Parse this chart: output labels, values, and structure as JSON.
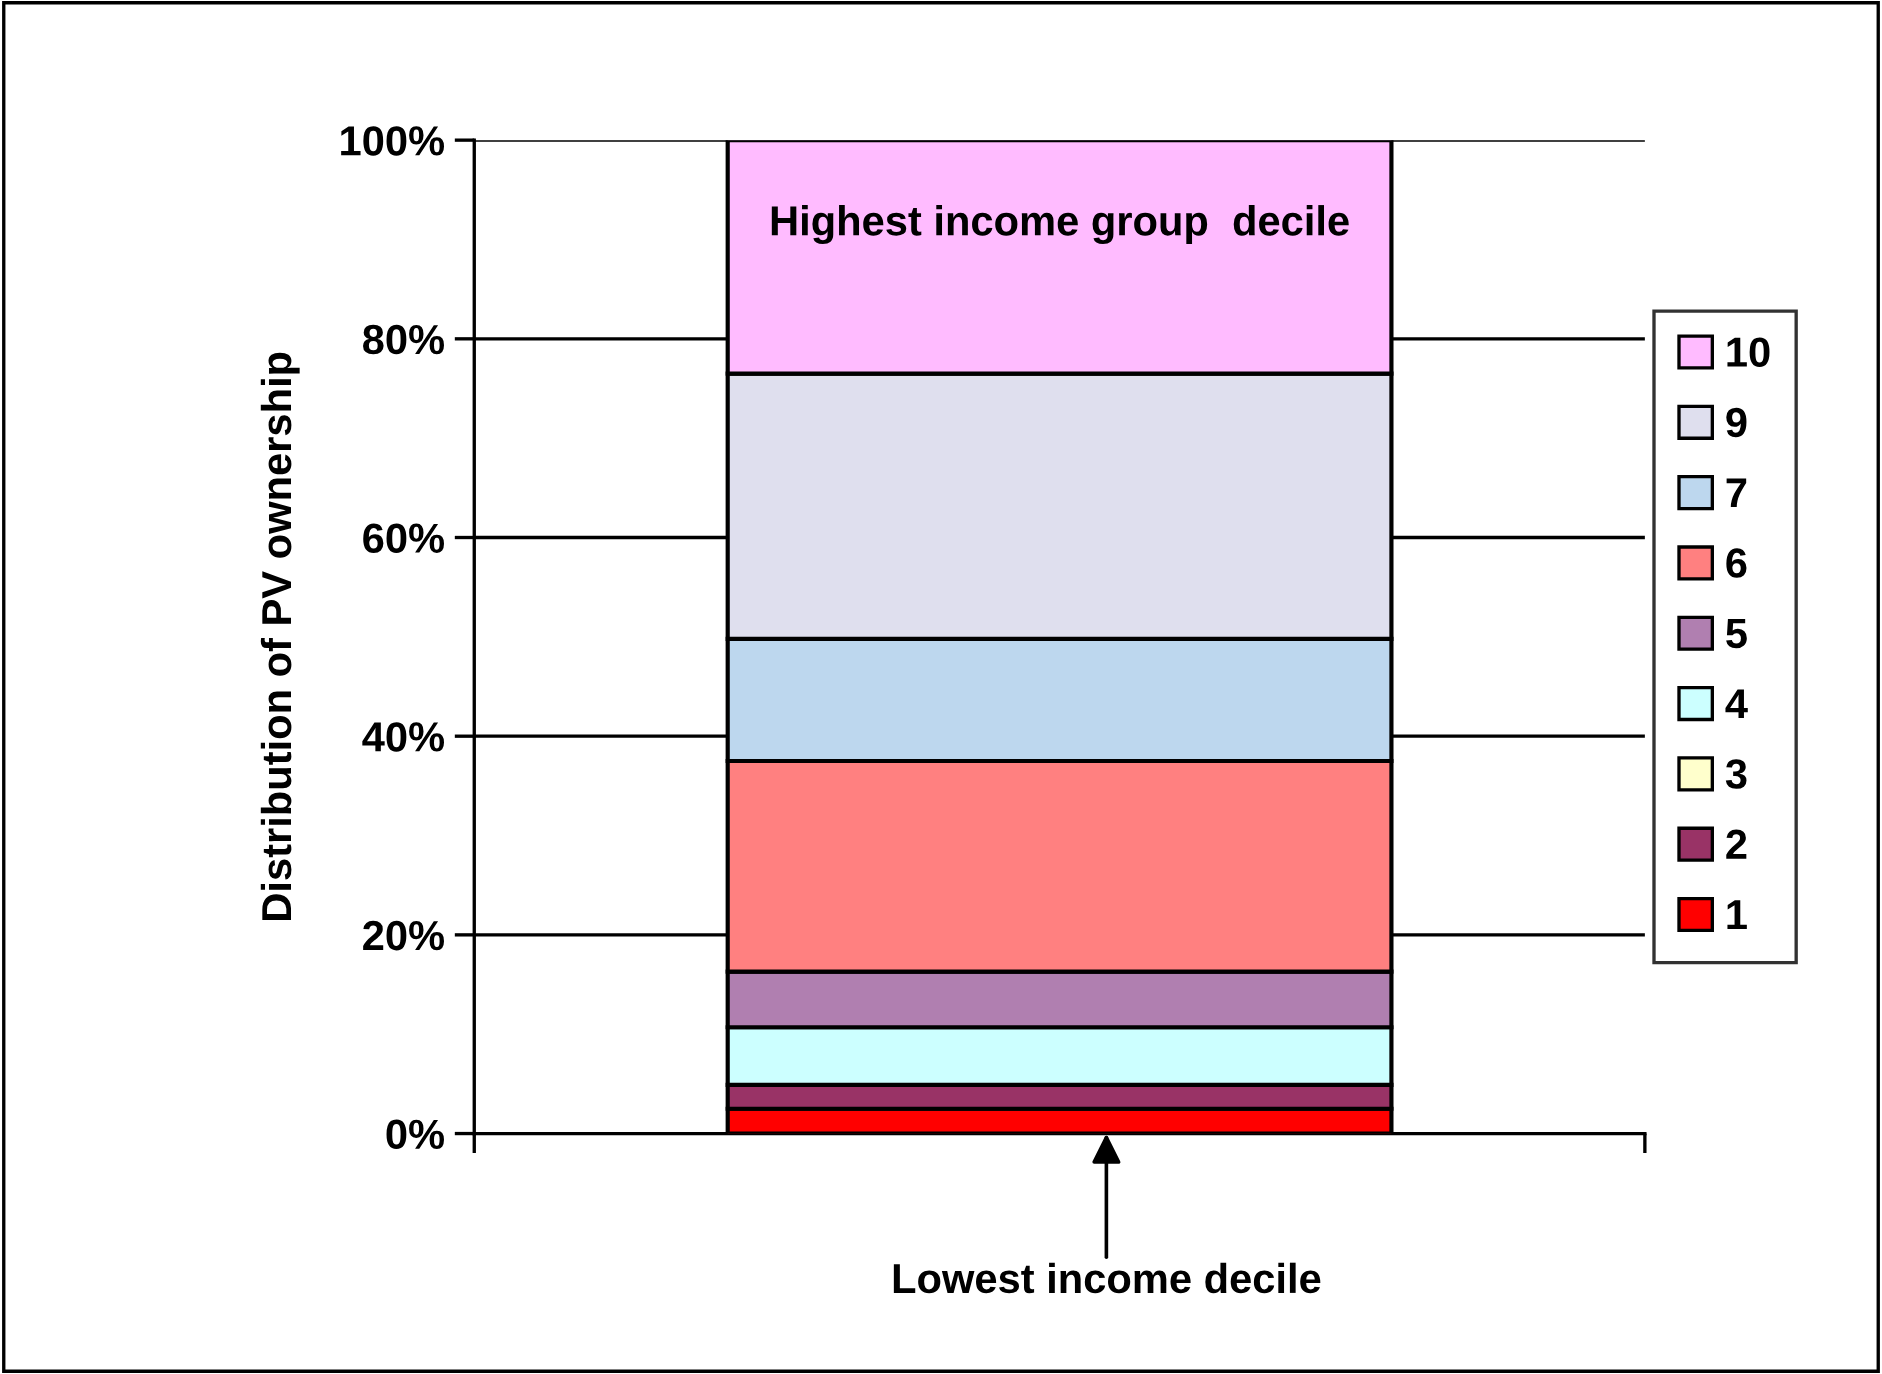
{
  "chart_data": {
    "type": "bar",
    "stacked": true,
    "ylabel": "Distribution of PV ownership",
    "categories": [
      null
    ],
    "series": [
      {
        "name": "1",
        "color": "#ff0000",
        "values": [
          2.5
        ]
      },
      {
        "name": "2",
        "color": "#993366",
        "values": [
          2.4
        ]
      },
      {
        "name": "3",
        "color": "#ffffcc",
        "values": [
          0
        ]
      },
      {
        "name": "4",
        "color": "#ccffff",
        "values": [
          5.8
        ]
      },
      {
        "name": "5",
        "color": "#b07fb0",
        "values": [
          5.6
        ]
      },
      {
        "name": "6",
        "color": "#ff8080",
        "values": [
          21.2
        ]
      },
      {
        "name": "7",
        "color": "#bdd7ee",
        "values": [
          12.3
        ]
      },
      {
        "name": "9",
        "color": "#dfdfee",
        "values": [
          26.7
        ]
      },
      {
        "name": "10",
        "color": "#ffbbff",
        "values": [
          23.5
        ]
      }
    ],
    "ylim": [
      0,
      100
    ],
    "yticks": [
      {
        "value": 0,
        "label": "0%"
      },
      {
        "value": 20,
        "label": "20%"
      },
      {
        "value": 40,
        "label": "40%"
      },
      {
        "value": 60,
        "label": "60%"
      },
      {
        "value": 80,
        "label": "80%"
      },
      {
        "value": 100,
        "label": "100%"
      }
    ],
    "grid": "y",
    "legend": "right",
    "annotations": [
      "Highest income group  decile",
      "Lowest income decile"
    ]
  }
}
